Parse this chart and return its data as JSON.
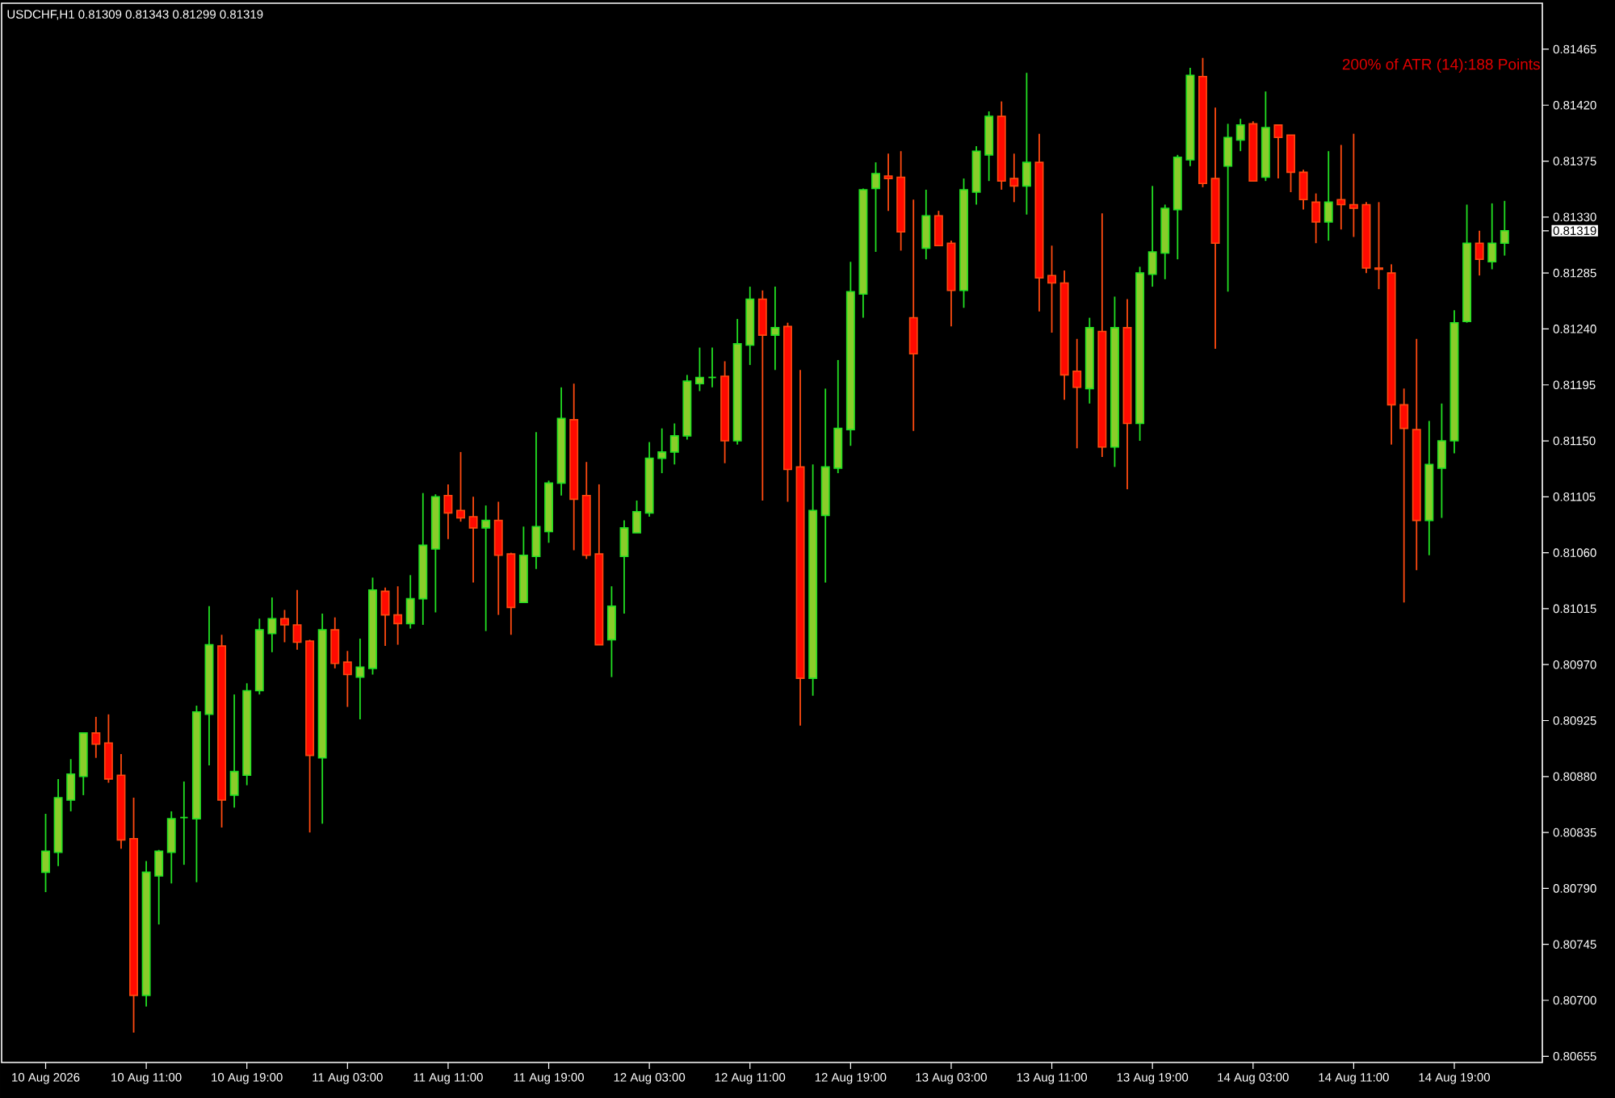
{
  "chart_data": {
    "type": "candlestick",
    "title": "USDCHF,H1  0.81309 0.81343 0.81299 0.81319",
    "annotations": [
      "200% of ATR (14):188 Points"
    ],
    "categories": [
      "10 Aug 2026",
      null,
      null,
      null,
      null,
      null,
      null,
      null,
      "10 Aug 11:00",
      null,
      null,
      null,
      null,
      null,
      null,
      null,
      "10 Aug 19:00",
      null,
      null,
      null,
      null,
      null,
      null,
      null,
      "11 Aug 03:00",
      null,
      null,
      null,
      null,
      null,
      null,
      null,
      "11 Aug 11:00",
      null,
      null,
      null,
      null,
      null,
      null,
      null,
      "11 Aug 19:00",
      null,
      null,
      null,
      null,
      null,
      null,
      null,
      "12 Aug 03:00",
      null,
      null,
      null,
      null,
      null,
      null,
      null,
      "12 Aug 11:00",
      null,
      null,
      null,
      null,
      null,
      null,
      null,
      "12 Aug 19:00",
      null,
      null,
      null,
      null,
      null,
      null,
      null,
      "13 Aug 03:00",
      null,
      null,
      null,
      null,
      null,
      null,
      null,
      "13 Aug 11:00",
      null,
      null,
      null,
      null,
      null,
      null,
      null,
      "13 Aug 19:00",
      null,
      null,
      null,
      null,
      null,
      null,
      null,
      "14 Aug 03:00",
      null,
      null,
      null,
      null,
      null,
      null,
      null,
      "14 Aug 11:00",
      null,
      null,
      null,
      null,
      null,
      null,
      null,
      "14 Aug 19:00",
      null,
      null,
      null,
      null
    ],
    "ohlc": [
      [
        0.80803,
        0.8085,
        0.80787,
        0.8082
      ],
      [
        0.80819,
        0.80878,
        0.80808,
        0.80863
      ],
      [
        0.80861,
        0.80894,
        0.80852,
        0.80882
      ],
      [
        0.8088,
        0.80915,
        0.80865,
        0.80915
      ],
      [
        0.80915,
        0.80928,
        0.80895,
        0.80906
      ],
      [
        0.80907,
        0.8093,
        0.80875,
        0.80878
      ],
      [
        0.80881,
        0.80898,
        0.80822,
        0.80829
      ],
      [
        0.8083,
        0.80863,
        0.80674,
        0.80704
      ],
      [
        0.80704,
        0.80812,
        0.80695,
        0.80803
      ],
      [
        0.808,
        0.80821,
        0.80761,
        0.8082
      ],
      [
        0.80819,
        0.80852,
        0.80794,
        0.80846
      ],
      [
        0.80847,
        0.80876,
        0.80809,
        0.80847
      ],
      [
        0.80846,
        0.80937,
        0.80795,
        0.80932
      ],
      [
        0.8093,
        0.81017,
        0.80889,
        0.80986
      ],
      [
        0.80985,
        0.80994,
        0.80839,
        0.80861
      ],
      [
        0.80865,
        0.80946,
        0.80855,
        0.80884
      ],
      [
        0.80881,
        0.80955,
        0.80873,
        0.80949
      ],
      [
        0.80949,
        0.81007,
        0.80946,
        0.80998
      ],
      [
        0.80995,
        0.81024,
        0.8098,
        0.81007
      ],
      [
        0.81007,
        0.81014,
        0.80988,
        0.81002
      ],
      [
        0.81002,
        0.8103,
        0.80982,
        0.80988
      ],
      [
        0.80989,
        0.8099,
        0.80835,
        0.80897
      ],
      [
        0.80895,
        0.81011,
        0.80842,
        0.80998
      ],
      [
        0.80998,
        0.81008,
        0.80967,
        0.80971
      ],
      [
        0.80972,
        0.80981,
        0.80936,
        0.80962
      ],
      [
        0.8096,
        0.80991,
        0.80926,
        0.80968
      ],
      [
        0.80967,
        0.8104,
        0.80962,
        0.8103
      ],
      [
        0.81029,
        0.81032,
        0.80985,
        0.8101
      ],
      [
        0.8101,
        0.81033,
        0.80986,
        0.81003
      ],
      [
        0.81003,
        0.81042,
        0.80999,
        0.81023
      ],
      [
        0.81023,
        0.81108,
        0.81002,
        0.81066
      ],
      [
        0.81063,
        0.81107,
        0.81012,
        0.81105
      ],
      [
        0.81106,
        0.81115,
        0.81071,
        0.81092
      ],
      [
        0.81094,
        0.81141,
        0.81085,
        0.81088
      ],
      [
        0.81089,
        0.81105,
        0.81036,
        0.8108
      ],
      [
        0.8108,
        0.81098,
        0.80997,
        0.81086
      ],
      [
        0.81086,
        0.81101,
        0.8101,
        0.81058
      ],
      [
        0.81059,
        0.8106,
        0.80994,
        0.81016
      ],
      [
        0.8102,
        0.81081,
        0.8102,
        0.81058
      ],
      [
        0.81057,
        0.81157,
        0.81047,
        0.81081
      ],
      [
        0.81077,
        0.81118,
        0.81068,
        0.81116
      ],
      [
        0.81116,
        0.81193,
        0.81106,
        0.81168
      ],
      [
        0.81167,
        0.81196,
        0.81062,
        0.81103
      ],
      [
        0.81106,
        0.81133,
        0.81055,
        0.81058
      ],
      [
        0.81059,
        0.81115,
        0.80986,
        0.80986
      ],
      [
        0.8099,
        0.81033,
        0.8096,
        0.81017
      ],
      [
        0.81057,
        0.81086,
        0.81011,
        0.8108
      ],
      [
        0.81076,
        0.81102,
        0.81076,
        0.81093
      ],
      [
        0.81092,
        0.81149,
        0.81089,
        0.81136
      ],
      [
        0.81136,
        0.8116,
        0.81124,
        0.81141
      ],
      [
        0.81141,
        0.81164,
        0.81131,
        0.81154
      ],
      [
        0.81154,
        0.81203,
        0.81151,
        0.81198
      ],
      [
        0.81196,
        0.81225,
        0.8119,
        0.81201
      ],
      [
        0.81201,
        0.81225,
        0.81193,
        0.81201
      ],
      [
        0.81202,
        0.81214,
        0.81132,
        0.8115
      ],
      [
        0.8115,
        0.81248,
        0.81147,
        0.81228
      ],
      [
        0.81227,
        0.81274,
        0.81211,
        0.81264
      ],
      [
        0.81264,
        0.81271,
        0.81102,
        0.81235
      ],
      [
        0.81235,
        0.81274,
        0.81207,
        0.81241
      ],
      [
        0.81242,
        0.81245,
        0.81101,
        0.81127
      ],
      [
        0.81129,
        0.81207,
        0.80921,
        0.80959
      ],
      [
        0.80959,
        0.81131,
        0.80945,
        0.81094
      ],
      [
        0.8109,
        0.81192,
        0.81036,
        0.81129
      ],
      [
        0.81128,
        0.81215,
        0.81124,
        0.8116
      ],
      [
        0.81159,
        0.81294,
        0.81146,
        0.8127
      ],
      [
        0.81268,
        0.81353,
        0.81249,
        0.81352
      ],
      [
        0.81353,
        0.81374,
        0.81302,
        0.81365
      ],
      [
        0.81363,
        0.81381,
        0.81335,
        0.81361
      ],
      [
        0.81362,
        0.81383,
        0.81303,
        0.81318
      ],
      [
        0.81249,
        0.81344,
        0.81158,
        0.8122
      ],
      [
        0.81305,
        0.81352,
        0.81296,
        0.81331
      ],
      [
        0.81331,
        0.81335,
        0.81307,
        0.81307
      ],
      [
        0.81309,
        0.81311,
        0.81242,
        0.81271
      ],
      [
        0.81271,
        0.81361,
        0.81257,
        0.81352
      ],
      [
        0.8135,
        0.81387,
        0.8134,
        0.81383
      ],
      [
        0.8138,
        0.81415,
        0.81359,
        0.81411
      ],
      [
        0.81411,
        0.81423,
        0.81352,
        0.81359
      ],
      [
        0.81361,
        0.81381,
        0.81342,
        0.81355
      ],
      [
        0.81355,
        0.81446,
        0.81332,
        0.81374
      ],
      [
        0.81374,
        0.81397,
        0.81254,
        0.81281
      ],
      [
        0.81283,
        0.81307,
        0.81237,
        0.81277
      ],
      [
        0.81277,
        0.81287,
        0.81183,
        0.81203
      ],
      [
        0.81206,
        0.81232,
        0.81144,
        0.81193
      ],
      [
        0.81192,
        0.81249,
        0.8118,
        0.81241
      ],
      [
        0.81238,
        0.81333,
        0.81137,
        0.81145
      ],
      [
        0.81145,
        0.81266,
        0.81129,
        0.81241
      ],
      [
        0.81241,
        0.81264,
        0.81111,
        0.81164
      ],
      [
        0.81164,
        0.8129,
        0.8115,
        0.81285
      ],
      [
        0.81284,
        0.81355,
        0.81274,
        0.81302
      ],
      [
        0.81301,
        0.8134,
        0.8128,
        0.81337
      ],
      [
        0.81336,
        0.8138,
        0.81296,
        0.81378
      ],
      [
        0.81376,
        0.8145,
        0.81371,
        0.81444
      ],
      [
        0.81443,
        0.81458,
        0.81354,
        0.81357
      ],
      [
        0.81361,
        0.81418,
        0.81224,
        0.81309
      ],
      [
        0.81371,
        0.81405,
        0.8127,
        0.81394
      ],
      [
        0.81392,
        0.81409,
        0.81383,
        0.81404
      ],
      [
        0.81405,
        0.81407,
        0.81359,
        0.81359
      ],
      [
        0.81362,
        0.81431,
        0.81359,
        0.81402
      ],
      [
        0.81404,
        0.81404,
        0.81361,
        0.81394
      ],
      [
        0.81396,
        0.81396,
        0.8135,
        0.81366
      ],
      [
        0.81366,
        0.81368,
        0.81336,
        0.81344
      ],
      [
        0.81342,
        0.81349,
        0.81309,
        0.81326
      ],
      [
        0.81326,
        0.81383,
        0.81311,
        0.81342
      ],
      [
        0.81344,
        0.81388,
        0.8132,
        0.8134
      ],
      [
        0.8134,
        0.81397,
        0.81314,
        0.81337
      ],
      [
        0.8134,
        0.81342,
        0.81285,
        0.81289
      ],
      [
        0.81289,
        0.81342,
        0.81272,
        0.81288
      ],
      [
        0.81285,
        0.81292,
        0.81147,
        0.81179
      ],
      [
        0.81179,
        0.81192,
        0.8102,
        0.8116
      ],
      [
        0.81159,
        0.81232,
        0.81046,
        0.81086
      ],
      [
        0.81086,
        0.81166,
        0.81058,
        0.81131
      ],
      [
        0.81128,
        0.8118,
        0.81088,
        0.8115
      ],
      [
        0.8115,
        0.81255,
        0.8114,
        0.81245
      ],
      [
        0.81246,
        0.8134,
        0.81245,
        0.81309
      ],
      [
        0.81309,
        0.81319,
        0.81283,
        0.81296
      ],
      [
        0.81294,
        0.81341,
        0.81288,
        0.81309
      ],
      [
        0.81309,
        0.81343,
        0.81299,
        0.81319
      ]
    ],
    "ylim": [
      0.8065,
      0.81502
    ],
    "yticks": [
      {
        "value": 0.81465,
        "label": "0.81465"
      },
      {
        "value": 0.8142,
        "label": "0.81420"
      },
      {
        "value": 0.81375,
        "label": "0.81375"
      },
      {
        "value": 0.8133,
        "label": "0.81330"
      },
      {
        "value": 0.81285,
        "label": "0.81285"
      },
      {
        "value": 0.8124,
        "label": "0.81240"
      },
      {
        "value": 0.81195,
        "label": "0.81195"
      },
      {
        "value": 0.8115,
        "label": "0.81150"
      },
      {
        "value": 0.81105,
        "label": "0.81105"
      },
      {
        "value": 0.8106,
        "label": "0.81060"
      },
      {
        "value": 0.81015,
        "label": "0.81015"
      },
      {
        "value": 0.8097,
        "label": "0.80970"
      },
      {
        "value": 0.80925,
        "label": "0.80925"
      },
      {
        "value": 0.8088,
        "label": "0.80880"
      },
      {
        "value": 0.80835,
        "label": "0.80835"
      },
      {
        "value": 0.8079,
        "label": "0.80790"
      },
      {
        "value": 0.80745,
        "label": "0.80745"
      },
      {
        "value": 0.807,
        "label": "0.80700"
      },
      {
        "value": 0.80655,
        "label": "0.80655"
      },
      {
        "value": 0.81319,
        "label": "0.81319"
      }
    ]
  }
}
